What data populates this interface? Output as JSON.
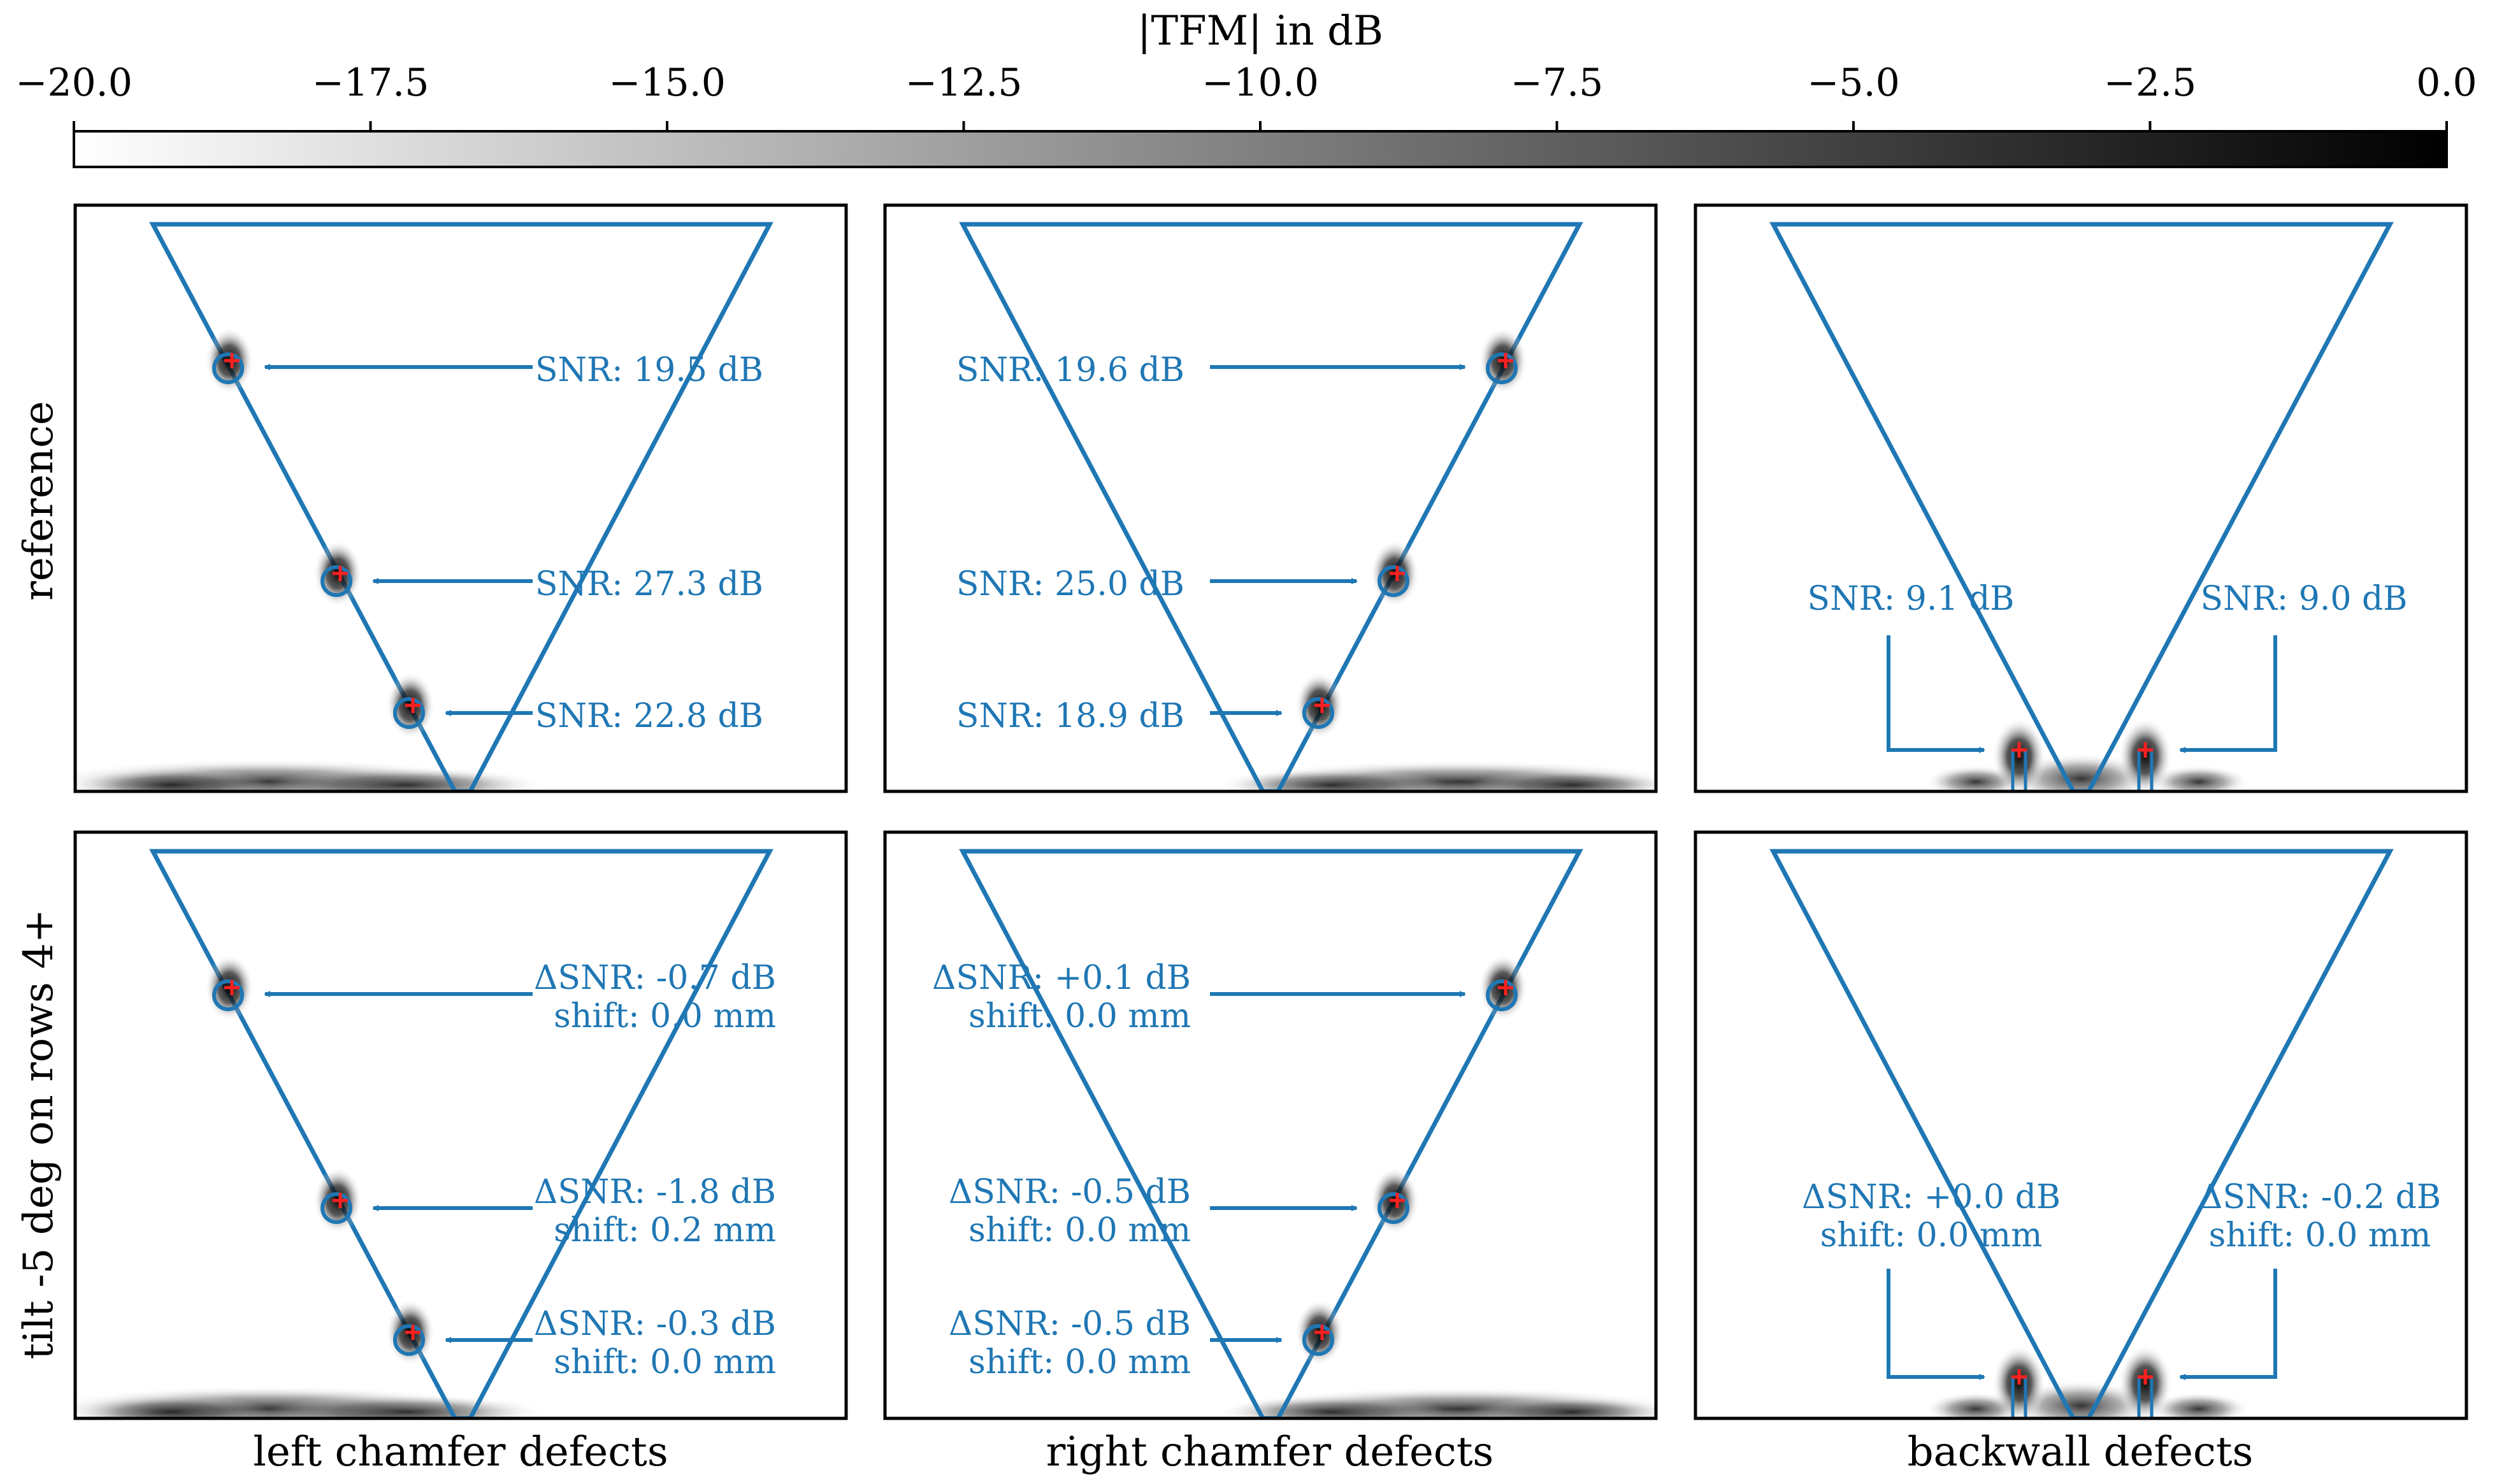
{
  "colorbar": {
    "label": "|TFM| in dB",
    "range": [
      -20.0,
      0.0
    ],
    "ticks": [
      "−20.0",
      "−17.5",
      "−15.0",
      "−12.5",
      "−10.0",
      "−7.5",
      "−5.0",
      "−2.5",
      "0.0"
    ],
    "colormap": "grey (white to black)"
  },
  "row_labels": [
    "reference",
    "tilt -5 deg on rows 4+"
  ],
  "column_labels": [
    "left chamfer defects",
    "right chamfer defects",
    "backwall defects"
  ],
  "colors": {
    "geometry_outline": "#1f77b4",
    "annotation_text": "#1f77b4",
    "defect_marker": "#ff2020",
    "frame": "#000000"
  },
  "chart_data": {
    "type": "heatmap",
    "panels": [
      {
        "row": "reference",
        "column": "left chamfer defects",
        "annotations": [
          {
            "lines": [
              "SNR: 19.5 dB"
            ]
          },
          {
            "lines": [
              "SNR: 27.3 dB"
            ]
          },
          {
            "lines": [
              "SNR: 22.8 dB"
            ]
          }
        ]
      },
      {
        "row": "reference",
        "column": "right chamfer defects",
        "annotations": [
          {
            "lines": [
              "SNR: 19.6 dB"
            ]
          },
          {
            "lines": [
              "SNR: 25.0 dB"
            ]
          },
          {
            "lines": [
              "SNR: 18.9 dB"
            ]
          }
        ]
      },
      {
        "row": "reference",
        "column": "backwall defects",
        "annotations": [
          {
            "lines": [
              "SNR: 9.1 dB"
            ]
          },
          {
            "lines": [
              "SNR: 9.0 dB"
            ]
          }
        ]
      },
      {
        "row": "tilt -5 deg on rows 4+",
        "column": "left chamfer defects",
        "annotations": [
          {
            "lines": [
              "ΔSNR: -0.7 dB",
              "shift: 0.0 mm"
            ]
          },
          {
            "lines": [
              "ΔSNR: -1.8 dB",
              "shift: 0.2 mm"
            ]
          },
          {
            "lines": [
              "ΔSNR: -0.3 dB",
              "shift: 0.0 mm"
            ]
          }
        ]
      },
      {
        "row": "tilt -5 deg on rows 4+",
        "column": "right chamfer defects",
        "annotations": [
          {
            "lines": [
              "ΔSNR: +0.1 dB",
              "shift: 0.0 mm"
            ]
          },
          {
            "lines": [
              "ΔSNR: -0.5 dB",
              "shift: 0.0 mm"
            ]
          },
          {
            "lines": [
              "ΔSNR: -0.5 dB",
              "shift: 0.0 mm"
            ]
          }
        ]
      },
      {
        "row": "tilt -5 deg on rows 4+",
        "column": "backwall defects",
        "annotations": [
          {
            "lines": [
              "ΔSNR: +0.0 dB",
              "shift: 0.0 mm"
            ]
          },
          {
            "lines": [
              "ΔSNR: -0.2 dB",
              "shift: 0.0 mm"
            ]
          }
        ]
      }
    ]
  }
}
